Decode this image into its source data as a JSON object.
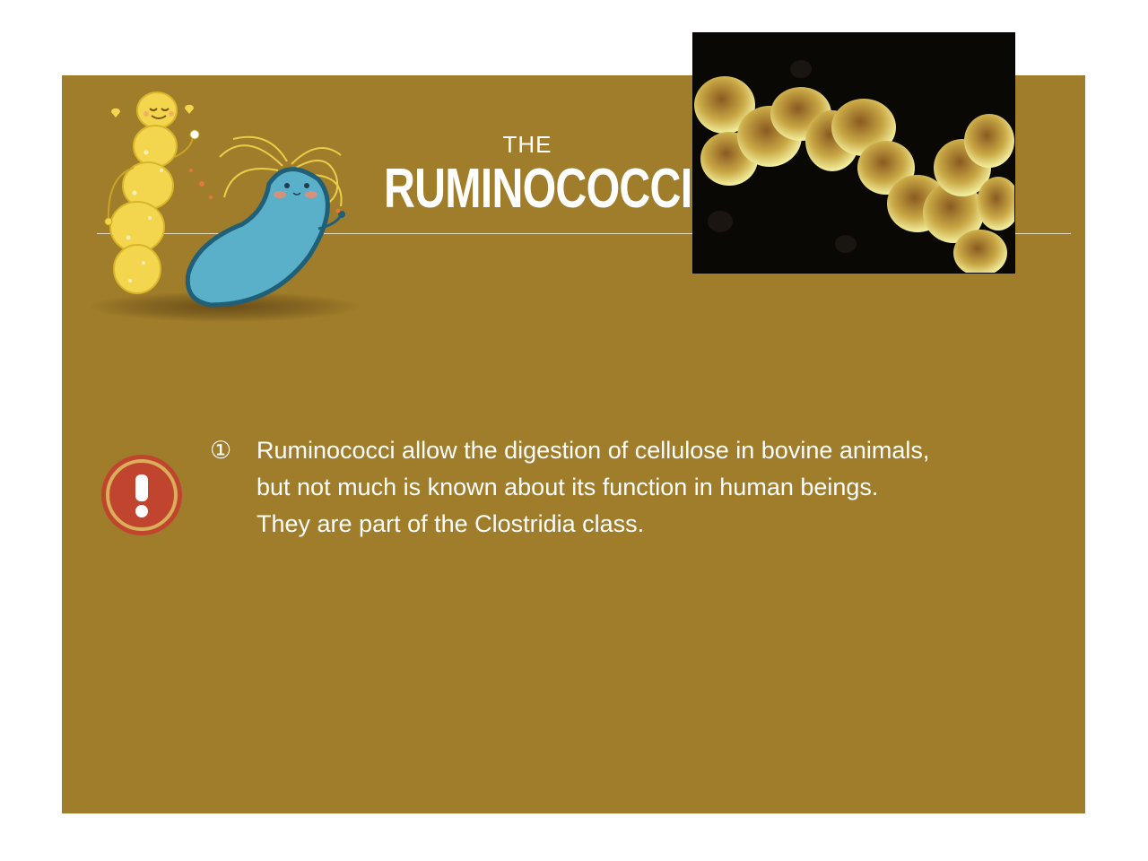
{
  "slide": {
    "title_small": "THE",
    "title_big": "RUMINOCOCCI",
    "bullet_number": "①",
    "body_lines": [
      "Ruminococci allow the digestion of cellulose in bovine animals,",
      "but not much is known about its function in human beings.",
      "They are part of the Clostridia class."
    ]
  },
  "icons": {
    "alert": "exclamation-icon",
    "cartoon_left": "yellow-bacterium-cartoon",
    "cartoon_right": "blue-bacterium-cartoon"
  },
  "colors": {
    "background": "#ffffff",
    "panel": "#a07d2a",
    "text": "#ffffff",
    "alert_red": "#c0442e",
    "cartoon_yellow": "#f3d64e",
    "cartoon_blue": "#5ab0c8"
  }
}
